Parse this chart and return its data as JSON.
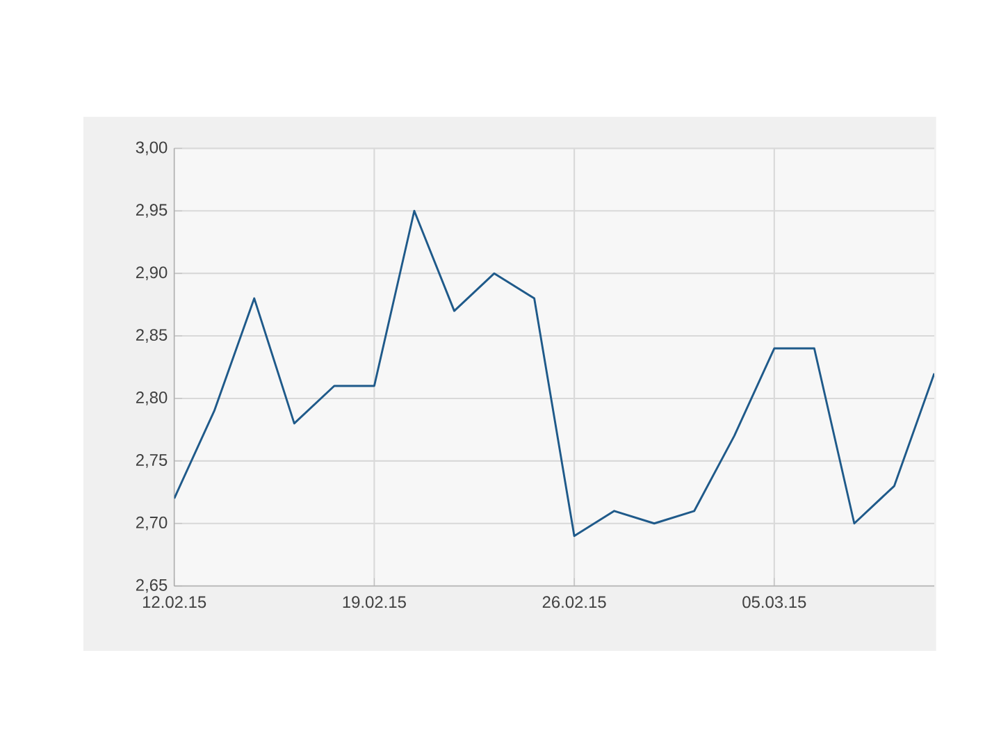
{
  "chart_data": {
    "type": "line",
    "categories": [
      "12.02.15",
      null,
      null,
      null,
      null,
      "19.02.15",
      null,
      null,
      null,
      null,
      "26.02.15",
      null,
      null,
      null,
      null,
      "05.03.15",
      null,
      null,
      null,
      null
    ],
    "series": [
      {
        "color": "#1f5a8a",
        "values": [
          2.72,
          2.79,
          2.88,
          2.78,
          2.81,
          2.81,
          2.95,
          2.87,
          2.9,
          2.88,
          2.69,
          2.71,
          2.7,
          2.71,
          2.77,
          2.84,
          2.84,
          2.7,
          2.73,
          2.82
        ]
      }
    ],
    "ylim": [
      2.65,
      3.0
    ],
    "yticks": [
      {
        "value": 2.65,
        "label": "2,65"
      },
      {
        "value": 2.7,
        "label": "2,70"
      },
      {
        "value": 2.75,
        "label": "2,75"
      },
      {
        "value": 2.8,
        "label": "2,80"
      },
      {
        "value": 2.85,
        "label": "2,85"
      },
      {
        "value": 2.9,
        "label": "2,90"
      },
      {
        "value": 2.95,
        "label": "2,95"
      },
      {
        "value": 3.0,
        "label": "3,00"
      }
    ],
    "grid": true,
    "marker": "none",
    "line_style": "solid"
  }
}
